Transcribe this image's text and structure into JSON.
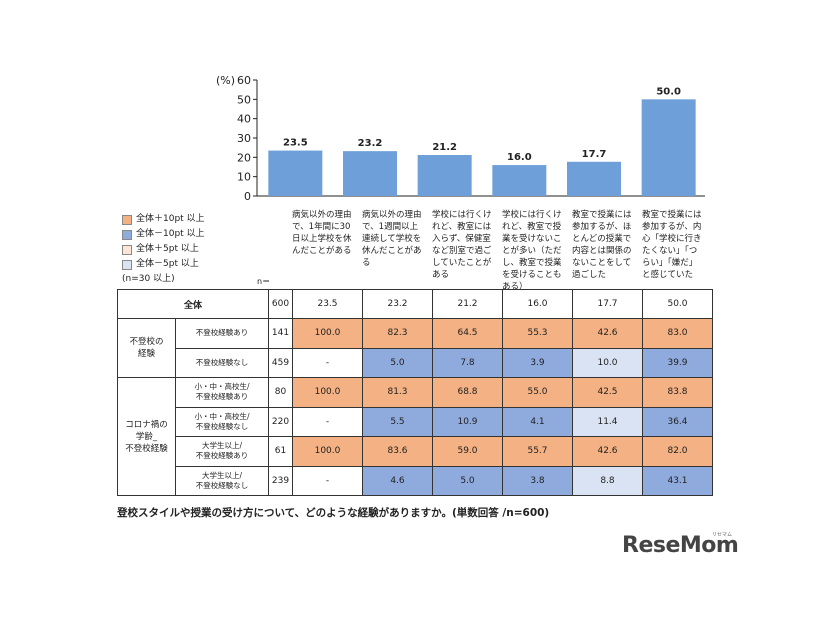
{
  "chart_data": {
    "type": "bar",
    "ylabel": "(%)",
    "ylim": [
      0,
      60
    ],
    "yticks": [
      0,
      10,
      20,
      30,
      40,
      50,
      60
    ],
    "bar_color": "#6f9fd8",
    "categories": [
      "病気以外の理由で、1年間に30日以上学校を休んだことがある",
      "病気以外の理由で、1週間以上連続して学校を休んだことがある",
      "学校には行くけれど、教室には入らず、保健室など別室で過ごしていたことがある",
      "学校には行くけれど、教室で授業を受けないことが多い（ただし、教室で授業を受けることもある）",
      "教室で授業には参加するが、ほとんどの授業で内容とは関係のないことをして過ごした",
      "教室で授業には参加するが、内心「学校に行きたくない」「つらい」「嫌だ」と感じていた"
    ],
    "values": [
      23.5,
      23.2,
      21.2,
      16.0,
      17.7,
      50.0
    ],
    "value_labels": [
      "23.5",
      "23.2",
      "21.2",
      "16.0",
      "17.7",
      "50.0"
    ]
  },
  "legend": {
    "items": [
      {
        "label": "全体＋10pt 以上",
        "color": "#f4b183"
      },
      {
        "label": "全体－10pt 以上",
        "color": "#8faadc"
      },
      {
        "label": "全体＋5pt 以上",
        "color": "#fce4d6"
      },
      {
        "label": "全体－5pt 以上",
        "color": "#dae3f3"
      }
    ],
    "note": "(n=30 以上)"
  },
  "table": {
    "n_header": "n＝",
    "total_row": {
      "label": "全体",
      "n": "600",
      "cells": [
        {
          "v": "23.5",
          "c": ""
        },
        {
          "v": "23.2",
          "c": ""
        },
        {
          "v": "21.2",
          "c": ""
        },
        {
          "v": "16.0",
          "c": ""
        },
        {
          "v": "17.7",
          "c": ""
        },
        {
          "v": "50.0",
          "c": ""
        }
      ]
    },
    "groups": [
      {
        "label": "不登校の\n経験",
        "rows": [
          {
            "label": "不登校経験あり",
            "n": "141",
            "cells": [
              {
                "v": "100.0",
                "c": "high"
              },
              {
                "v": "82.3",
                "c": "high"
              },
              {
                "v": "64.5",
                "c": "high"
              },
              {
                "v": "55.3",
                "c": "high"
              },
              {
                "v": "42.6",
                "c": "high"
              },
              {
                "v": "83.0",
                "c": "high"
              }
            ]
          },
          {
            "label": "不登校経験なし",
            "n": "459",
            "cells": [
              {
                "v": "-",
                "c": ""
              },
              {
                "v": "5.0",
                "c": "low"
              },
              {
                "v": "7.8",
                "c": "low"
              },
              {
                "v": "3.9",
                "c": "low"
              },
              {
                "v": "10.0",
                "c": "minus5"
              },
              {
                "v": "39.9",
                "c": "low"
              }
            ]
          }
        ]
      },
      {
        "label": "コロナ禍の\n学齢_\n不登校経験",
        "rows": [
          {
            "label": "小・中・高校生/\n不登校経験あり",
            "n": "80",
            "cells": [
              {
                "v": "100.0",
                "c": "high"
              },
              {
                "v": "81.3",
                "c": "high"
              },
              {
                "v": "68.8",
                "c": "high"
              },
              {
                "v": "55.0",
                "c": "high"
              },
              {
                "v": "42.5",
                "c": "high"
              },
              {
                "v": "83.8",
                "c": "high"
              }
            ]
          },
          {
            "label": "小・中・高校生/\n不登校経験なし",
            "n": "220",
            "cells": [
              {
                "v": "-",
                "c": ""
              },
              {
                "v": "5.5",
                "c": "low"
              },
              {
                "v": "10.9",
                "c": "low"
              },
              {
                "v": "4.1",
                "c": "low"
              },
              {
                "v": "11.4",
                "c": "minus5"
              },
              {
                "v": "36.4",
                "c": "low"
              }
            ]
          },
          {
            "label": "大学生以上/\n不登校経験あり",
            "n": "61",
            "cells": [
              {
                "v": "100.0",
                "c": "high"
              },
              {
                "v": "83.6",
                "c": "high"
              },
              {
                "v": "59.0",
                "c": "high"
              },
              {
                "v": "55.7",
                "c": "high"
              },
              {
                "v": "42.6",
                "c": "high"
              },
              {
                "v": "82.0",
                "c": "high"
              }
            ]
          },
          {
            "label": "大学生以上/\n不登校経験なし",
            "n": "239",
            "cells": [
              {
                "v": "-",
                "c": ""
              },
              {
                "v": "4.6",
                "c": "low"
              },
              {
                "v": "5.0",
                "c": "low"
              },
              {
                "v": "3.8",
                "c": "low"
              },
              {
                "v": "8.8",
                "c": "minus5"
              },
              {
                "v": "43.1",
                "c": "low"
              }
            ]
          }
        ]
      }
    ]
  },
  "caption": "登校スタイルや授業の受け方について、どのような経験がありますか。(単数回答 /n=600)",
  "logo": {
    "text": "ReseMom",
    "ruby": "リセマム"
  }
}
